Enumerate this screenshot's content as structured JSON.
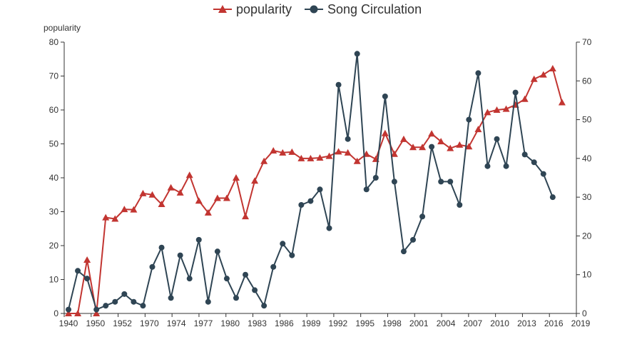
{
  "chart_data": {
    "type": "line",
    "title": "",
    "legend_position": "top-center",
    "grid": false,
    "xlabel": "",
    "ylabel_left": "popularity",
    "ylabel_right": "",
    "x_tick_labels": [
      "1940",
      "1950",
      "1952",
      "1970",
      "1974",
      "1977",
      "1980",
      "1983",
      "1986",
      "1989",
      "1992",
      "1995",
      "1998",
      "2001",
      "2004",
      "2007",
      "2010",
      "2013",
      "2016",
      "2019"
    ],
    "ylim_left": [
      0,
      80
    ],
    "ylim_right": [
      0,
      70
    ],
    "yticks_left": [
      0,
      10,
      20,
      30,
      40,
      50,
      60,
      70,
      80
    ],
    "yticks_right": [
      0,
      10,
      20,
      30,
      40,
      50,
      60,
      70
    ],
    "series": [
      {
        "name": "popularity",
        "axis": "left",
        "color": "#c23531",
        "marker": "triangle",
        "values": [
          0,
          0,
          15.8,
          0,
          28.3,
          27.9,
          30.7,
          30.6,
          35.4,
          35.0,
          32.2,
          37.1,
          35.6,
          40.8,
          33.2,
          29.7,
          34.0,
          34.0,
          40.0,
          28.6,
          39.1,
          44.9,
          48.0,
          47.4,
          47.6,
          45.7,
          45.7,
          45.9,
          46.4,
          47.7,
          47.4,
          44.9,
          47.0,
          45.5,
          53.1,
          47.0,
          51.4,
          49.0,
          49.0,
          53.0,
          50.7,
          48.7,
          49.7,
          49.2,
          54.3,
          59.3,
          60.0,
          60.3,
          61.5,
          63.2,
          69.1,
          70.4,
          72.2,
          62.2
        ]
      },
      {
        "name": "Song Circulation",
        "axis": "right",
        "color": "#2f4554",
        "marker": "circle",
        "values": [
          1,
          11,
          9,
          1,
          2,
          3,
          5,
          3,
          2,
          12,
          17,
          4,
          15,
          9,
          19,
          3,
          16,
          9,
          4,
          10,
          6,
          2,
          12,
          18,
          15,
          28,
          29,
          32,
          22,
          59,
          45,
          67,
          32,
          35,
          56,
          34,
          16,
          19,
          25,
          43,
          34,
          34,
          28,
          50,
          62,
          38,
          45,
          38,
          57,
          41,
          39,
          36,
          30
        ]
      }
    ]
  }
}
